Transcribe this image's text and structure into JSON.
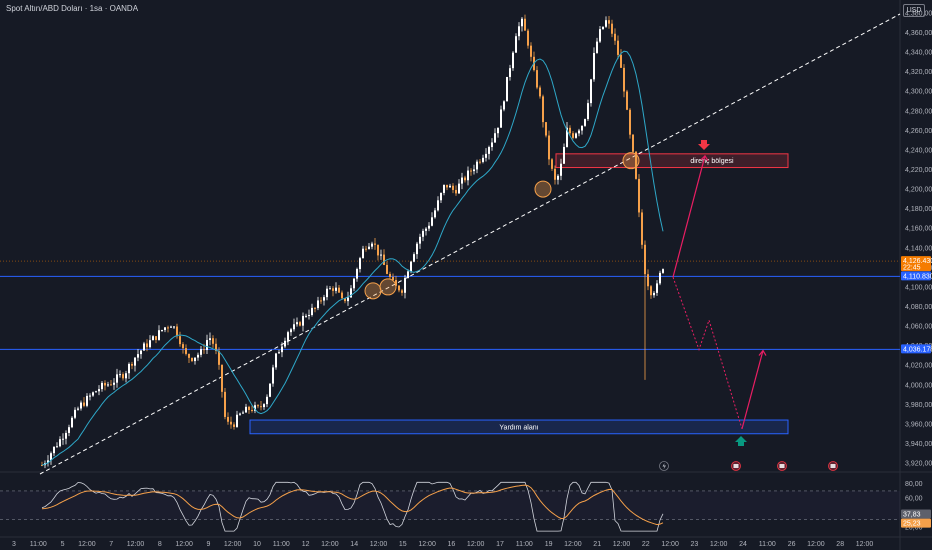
{
  "header": {
    "title": "Spot Altın/ABD Doları · 1sa · OANDA",
    "currency": "USD"
  },
  "colors": {
    "background": "#161a25",
    "candle_up": "#ffffff",
    "candle_down": "#f5a04a",
    "ma_line": "#2ea8c9",
    "support_line": "#2962ff",
    "resistance_zone": "#f23645",
    "arrow_path": "#e91e63",
    "rsi_line": "#d1d4dc",
    "rsi_ma": "#f5a04a"
  },
  "chart_data": [
    {
      "type": "candlestick",
      "title": "Spot Altın/ABD Doları · 1sa · OANDA",
      "y_axis": {
        "labels": [
          "4,380,000",
          "4,360,000",
          "4,340,000",
          "4,320,000",
          "4,300,000",
          "4,280,000",
          "4,260,000",
          "4,240,000",
          "4,220,000",
          "4,200,000",
          "4,180,000",
          "4,160,000",
          "4,140,000",
          "4,120,000",
          "4,100,000",
          "4,080,000",
          "4,060,000",
          "4,040,000",
          "4,020,000",
          "4,000,000",
          "3,980,000",
          "3,960,000",
          "3,940,000",
          "3,920,000"
        ],
        "range": [
          3915,
          4385
        ]
      },
      "x_axis": {
        "labels": [
          "3",
          "11:00",
          "5",
          "12:00",
          "7",
          "12:00",
          "8",
          "12:00",
          "9",
          "12:00",
          "10",
          "11:00",
          "12",
          "12:00",
          "14",
          "12:00",
          "15",
          "12:00",
          "16",
          "12:00",
          "17",
          "11:00",
          "19",
          "12:00",
          "21",
          "12:00",
          "22",
          "12:00",
          "23",
          "12:00",
          "24",
          "11:00",
          "26",
          "12:00",
          "28",
          "12:00"
        ]
      },
      "price_tags": [
        {
          "label": "4,126.430",
          "sub": "22:45",
          "value": 4126.43,
          "color": "#f57c00"
        },
        {
          "label": "4,110.830",
          "value": 4110.83,
          "color": "#2962ff"
        },
        {
          "label": "4,036.178",
          "value": 4036.18,
          "color": "#2962ff"
        }
      ],
      "zones": [
        {
          "label": "direnç bölgesi",
          "from": 4222,
          "to": 4236,
          "color": "#f23645"
        },
        {
          "label": "Yardım alanı",
          "from": 3950,
          "to": 3964,
          "color": "#2962ff"
        }
      ],
      "horizontal_lines": [
        {
          "value": 4110.83,
          "color": "#2962ff"
        },
        {
          "value": 4036.18,
          "color": "#2962ff"
        }
      ],
      "trendline": {
        "from": [
          0,
          3918
        ],
        "to": [
          1,
          4372
        ],
        "style": "dashed"
      },
      "projection": [
        4110,
        4234,
        4110,
        4036,
        4066,
        4036,
        3955,
        4035
      ],
      "close": 4126.43,
      "high_approx": 4376,
      "low_approx": 3950
    },
    {
      "type": "line",
      "title": "RSI",
      "y_axis": {
        "labels": [
          "80,00",
          "60,00",
          "40,00",
          "20,00"
        ],
        "range": [
          10,
          88
        ]
      },
      "values_tags": [
        {
          "label": "37,83",
          "value": 37.83,
          "color": "#5d606b"
        },
        {
          "label": "25,23",
          "value": 25.23,
          "color": "#f5a04a"
        }
      ]
    }
  ],
  "events": [
    {
      "icon": "lightning-icon"
    },
    {
      "icon": "flag-icon"
    },
    {
      "icon": "flag-icon"
    },
    {
      "icon": "flag-icon"
    }
  ]
}
